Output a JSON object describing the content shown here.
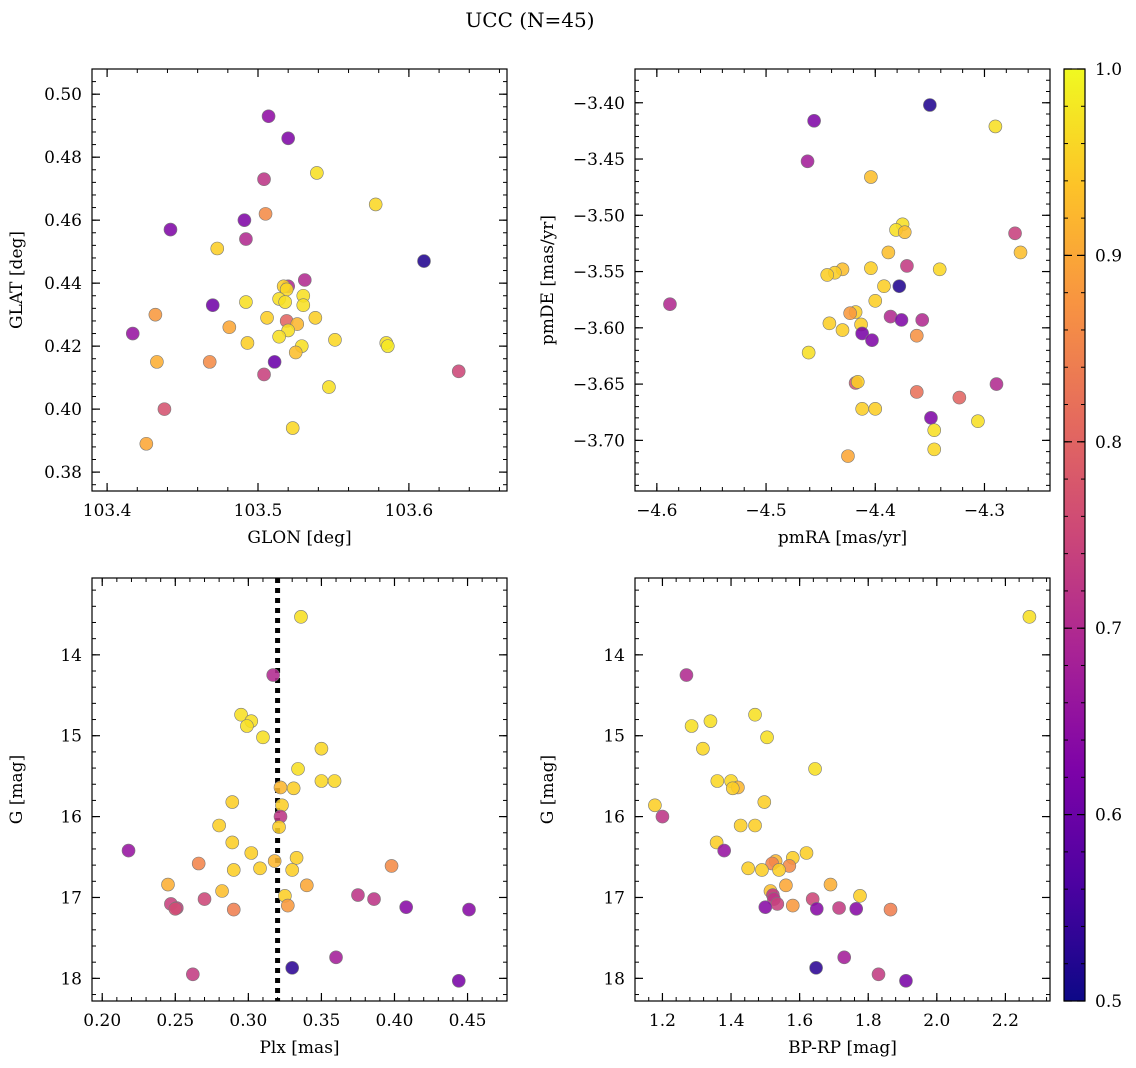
{
  "figure": {
    "title": "UCC (N=45)"
  },
  "colorbar": {
    "min": 0.5,
    "max": 1.0,
    "ticks": [
      0.5,
      0.6,
      0.7,
      0.8,
      0.9,
      1.0
    ],
    "tick_labels": [
      "0.5",
      "0.6",
      "0.7",
      "0.8",
      "0.9",
      "1.0"
    ],
    "colormap": "plasma"
  },
  "chart_data": [
    {
      "type": "scatter",
      "xlabel": "GLON [deg]",
      "ylabel": "GLAT [deg]",
      "xlim": [
        103.39,
        103.665
      ],
      "ylim": [
        0.374,
        0.508
      ],
      "xticks": [
        103.4,
        103.5,
        103.6
      ],
      "xtick_labels": [
        "103.4",
        "103.5",
        "103.6"
      ],
      "yticks": [
        0.38,
        0.4,
        0.42,
        0.44,
        0.46,
        0.48,
        0.5
      ],
      "ytick_labels": [
        "0.38",
        "0.40",
        "0.42",
        "0.44",
        "0.46",
        "0.48",
        "0.50"
      ],
      "invert_y": false,
      "points": [
        {
          "x": 103.507,
          "y": 0.493,
          "c": 0.65
        },
        {
          "x": 103.52,
          "y": 0.486,
          "c": 0.63
        },
        {
          "x": 103.539,
          "y": 0.475,
          "c": 0.97
        },
        {
          "x": 103.504,
          "y": 0.473,
          "c": 0.72
        },
        {
          "x": 103.578,
          "y": 0.465,
          "c": 0.96
        },
        {
          "x": 103.505,
          "y": 0.462,
          "c": 0.86
        },
        {
          "x": 103.491,
          "y": 0.46,
          "c": 0.63
        },
        {
          "x": 103.442,
          "y": 0.457,
          "c": 0.63
        },
        {
          "x": 103.492,
          "y": 0.454,
          "c": 0.7
        },
        {
          "x": 103.473,
          "y": 0.451,
          "c": 0.95
        },
        {
          "x": 103.61,
          "y": 0.447,
          "c": 0.52
        },
        {
          "x": 103.531,
          "y": 0.441,
          "c": 0.7
        },
        {
          "x": 103.52,
          "y": 0.439,
          "c": 0.7
        },
        {
          "x": 103.517,
          "y": 0.439,
          "c": 0.95
        },
        {
          "x": 103.519,
          "y": 0.438,
          "c": 0.96
        },
        {
          "x": 103.514,
          "y": 0.435,
          "c": 0.97
        },
        {
          "x": 103.53,
          "y": 0.436,
          "c": 0.97
        },
        {
          "x": 103.518,
          "y": 0.434,
          "c": 0.97
        },
        {
          "x": 103.492,
          "y": 0.434,
          "c": 0.97
        },
        {
          "x": 103.53,
          "y": 0.433,
          "c": 0.97
        },
        {
          "x": 103.47,
          "y": 0.433,
          "c": 0.61
        },
        {
          "x": 103.432,
          "y": 0.43,
          "c": 0.88
        },
        {
          "x": 103.506,
          "y": 0.429,
          "c": 0.95
        },
        {
          "x": 103.538,
          "y": 0.429,
          "c": 0.95
        },
        {
          "x": 103.519,
          "y": 0.428,
          "c": 0.8
        },
        {
          "x": 103.526,
          "y": 0.427,
          "c": 0.92
        },
        {
          "x": 103.481,
          "y": 0.426,
          "c": 0.9
        },
        {
          "x": 103.52,
          "y": 0.425,
          "c": 0.97
        },
        {
          "x": 103.417,
          "y": 0.424,
          "c": 0.66
        },
        {
          "x": 103.514,
          "y": 0.423,
          "c": 0.97
        },
        {
          "x": 103.551,
          "y": 0.422,
          "c": 0.96
        },
        {
          "x": 103.585,
          "y": 0.421,
          "c": 0.97
        },
        {
          "x": 103.493,
          "y": 0.421,
          "c": 0.95
        },
        {
          "x": 103.529,
          "y": 0.42,
          "c": 0.97
        },
        {
          "x": 103.586,
          "y": 0.42,
          "c": 0.98
        },
        {
          "x": 103.525,
          "y": 0.418,
          "c": 0.93
        },
        {
          "x": 103.468,
          "y": 0.415,
          "c": 0.86
        },
        {
          "x": 103.511,
          "y": 0.415,
          "c": 0.6
        },
        {
          "x": 103.433,
          "y": 0.415,
          "c": 0.91
        },
        {
          "x": 103.633,
          "y": 0.412,
          "c": 0.75
        },
        {
          "x": 103.504,
          "y": 0.411,
          "c": 0.74
        },
        {
          "x": 103.547,
          "y": 0.407,
          "c": 0.97
        },
        {
          "x": 103.438,
          "y": 0.4,
          "c": 0.77
        },
        {
          "x": 103.523,
          "y": 0.394,
          "c": 0.96
        },
        {
          "x": 103.426,
          "y": 0.389,
          "c": 0.9
        }
      ]
    },
    {
      "type": "scatter",
      "xlabel": "pmRA [mas/yr]",
      "ylabel": "pmDE [mas/yr]",
      "xlim": [
        -4.62,
        -4.24
      ],
      "ylim": [
        -3.745,
        -3.37
      ],
      "xticks": [
        -4.6,
        -4.5,
        -4.4,
        -4.3
      ],
      "xtick_labels": [
        "−4.6",
        "−4.5",
        "−4.4",
        "−4.3"
      ],
      "yticks": [
        -3.7,
        -3.65,
        -3.6,
        -3.55,
        -3.5,
        -3.45,
        -3.4
      ],
      "ytick_labels": [
        "−3.70",
        "−3.65",
        "−3.60",
        "−3.55",
        "−3.50",
        "−3.45",
        "−3.40"
      ],
      "invert_y": false,
      "points": [
        {
          "x": -4.35,
          "y": -3.402,
          "c": 0.52
        },
        {
          "x": -4.456,
          "y": -3.416,
          "c": 0.63
        },
        {
          "x": -4.29,
          "y": -3.421,
          "c": 0.97
        },
        {
          "x": -4.462,
          "y": -3.452,
          "c": 0.68
        },
        {
          "x": -4.404,
          "y": -3.466,
          "c": 0.93
        },
        {
          "x": -4.375,
          "y": -3.508,
          "c": 0.97
        },
        {
          "x": -4.381,
          "y": -3.513,
          "c": 0.97
        },
        {
          "x": -4.373,
          "y": -3.515,
          "c": 0.93
        },
        {
          "x": -4.272,
          "y": -3.516,
          "c": 0.74
        },
        {
          "x": -4.388,
          "y": -3.533,
          "c": 0.93
        },
        {
          "x": -4.267,
          "y": -3.533,
          "c": 0.93
        },
        {
          "x": -4.371,
          "y": -3.545,
          "c": 0.73
        },
        {
          "x": -4.404,
          "y": -3.547,
          "c": 0.95
        },
        {
          "x": -4.43,
          "y": -3.548,
          "c": 0.93
        },
        {
          "x": -4.341,
          "y": -3.548,
          "c": 0.96
        },
        {
          "x": -4.437,
          "y": -3.551,
          "c": 0.95
        },
        {
          "x": -4.444,
          "y": -3.553,
          "c": 0.95
        },
        {
          "x": -4.378,
          "y": -3.563,
          "c": 0.52
        },
        {
          "x": -4.392,
          "y": -3.563,
          "c": 0.95
        },
        {
          "x": -4.4,
          "y": -3.576,
          "c": 0.95
        },
        {
          "x": -4.588,
          "y": -3.579,
          "c": 0.7
        },
        {
          "x": -4.418,
          "y": -3.586,
          "c": 0.95
        },
        {
          "x": -4.423,
          "y": -3.587,
          "c": 0.88
        },
        {
          "x": -4.386,
          "y": -3.59,
          "c": 0.7
        },
        {
          "x": -4.376,
          "y": -3.593,
          "c": 0.63
        },
        {
          "x": -4.357,
          "y": -3.593,
          "c": 0.7
        },
        {
          "x": -4.442,
          "y": -3.596,
          "c": 0.95
        },
        {
          "x": -4.413,
          "y": -3.597,
          "c": 0.95
        },
        {
          "x": -4.43,
          "y": -3.602,
          "c": 0.95
        },
        {
          "x": -4.412,
          "y": -3.605,
          "c": 0.62
        },
        {
          "x": -4.362,
          "y": -3.607,
          "c": 0.87
        },
        {
          "x": -4.403,
          "y": -3.611,
          "c": 0.63
        },
        {
          "x": -4.461,
          "y": -3.622,
          "c": 0.97
        },
        {
          "x": -4.418,
          "y": -3.649,
          "c": 0.77
        },
        {
          "x": -4.416,
          "y": -3.648,
          "c": 0.95
        },
        {
          "x": -4.289,
          "y": -3.65,
          "c": 0.7
        },
        {
          "x": -4.362,
          "y": -3.657,
          "c": 0.82
        },
        {
          "x": -4.323,
          "y": -3.662,
          "c": 0.8
        },
        {
          "x": -4.412,
          "y": -3.672,
          "c": 0.95
        },
        {
          "x": -4.4,
          "y": -3.672,
          "c": 0.95
        },
        {
          "x": -4.349,
          "y": -3.68,
          "c": 0.63
        },
        {
          "x": -4.306,
          "y": -3.683,
          "c": 0.97
        },
        {
          "x": -4.346,
          "y": -3.691,
          "c": 0.97
        },
        {
          "x": -4.346,
          "y": -3.708,
          "c": 0.96
        },
        {
          "x": -4.425,
          "y": -3.714,
          "c": 0.9
        }
      ]
    },
    {
      "type": "scatter",
      "xlabel": "Plx [mas]",
      "ylabel": "G [mag]",
      "xlim": [
        0.193,
        0.477
      ],
      "ylim": [
        18.28,
        13.05
      ],
      "xticks": [
        0.2,
        0.25,
        0.3,
        0.35,
        0.4,
        0.45
      ],
      "xtick_labels": [
        "0.20",
        "0.25",
        "0.30",
        "0.35",
        "0.40",
        "0.45"
      ],
      "yticks": [
        14,
        15,
        16,
        17,
        18
      ],
      "ytick_labels": [
        "14",
        "15",
        "16",
        "17",
        "18"
      ],
      "invert_y": true,
      "vline": {
        "x": 0.32,
        "style": "dotted"
      },
      "points": [
        {
          "x": 0.336,
          "y": 13.53,
          "c": 0.97
        },
        {
          "x": 0.317,
          "y": 14.25,
          "c": 0.7
        },
        {
          "x": 0.295,
          "y": 14.74,
          "c": 0.97
        },
        {
          "x": 0.302,
          "y": 14.82,
          "c": 0.97
        },
        {
          "x": 0.299,
          "y": 14.88,
          "c": 0.97
        },
        {
          "x": 0.31,
          "y": 15.02,
          "c": 0.97
        },
        {
          "x": 0.35,
          "y": 15.16,
          "c": 0.96
        },
        {
          "x": 0.334,
          "y": 15.41,
          "c": 0.97
        },
        {
          "x": 0.35,
          "y": 15.56,
          "c": 0.96
        },
        {
          "x": 0.359,
          "y": 15.56,
          "c": 0.96
        },
        {
          "x": 0.322,
          "y": 15.64,
          "c": 0.92
        },
        {
          "x": 0.331,
          "y": 15.65,
          "c": 0.95
        },
        {
          "x": 0.289,
          "y": 15.82,
          "c": 0.95
        },
        {
          "x": 0.323,
          "y": 15.86,
          "c": 0.95
        },
        {
          "x": 0.322,
          "y": 16.0,
          "c": 0.72
        },
        {
          "x": 0.28,
          "y": 16.11,
          "c": 0.95
        },
        {
          "x": 0.321,
          "y": 16.13,
          "c": 0.95
        },
        {
          "x": 0.289,
          "y": 16.32,
          "c": 0.95
        },
        {
          "x": 0.218,
          "y": 16.42,
          "c": 0.66
        },
        {
          "x": 0.302,
          "y": 16.45,
          "c": 0.95
        },
        {
          "x": 0.333,
          "y": 16.51,
          "c": 0.95
        },
        {
          "x": 0.318,
          "y": 16.55,
          "c": 0.92
        },
        {
          "x": 0.266,
          "y": 16.58,
          "c": 0.85
        },
        {
          "x": 0.398,
          "y": 16.61,
          "c": 0.86
        },
        {
          "x": 0.308,
          "y": 16.64,
          "c": 0.95
        },
        {
          "x": 0.29,
          "y": 16.66,
          "c": 0.95
        },
        {
          "x": 0.33,
          "y": 16.66,
          "c": 0.95
        },
        {
          "x": 0.245,
          "y": 16.84,
          "c": 0.91
        },
        {
          "x": 0.34,
          "y": 16.85,
          "c": 0.9
        },
        {
          "x": 0.282,
          "y": 16.92,
          "c": 0.93
        },
        {
          "x": 0.375,
          "y": 16.97,
          "c": 0.72
        },
        {
          "x": 0.325,
          "y": 16.98,
          "c": 0.95
        },
        {
          "x": 0.27,
          "y": 17.02,
          "c": 0.75
        },
        {
          "x": 0.386,
          "y": 17.02,
          "c": 0.72
        },
        {
          "x": 0.247,
          "y": 17.08,
          "c": 0.74
        },
        {
          "x": 0.327,
          "y": 17.1,
          "c": 0.88
        },
        {
          "x": 0.408,
          "y": 17.12,
          "c": 0.64
        },
        {
          "x": 0.251,
          "y": 17.13,
          "c": 0.73
        },
        {
          "x": 0.25,
          "y": 17.14,
          "c": 0.76
        },
        {
          "x": 0.29,
          "y": 17.15,
          "c": 0.84
        },
        {
          "x": 0.451,
          "y": 17.15,
          "c": 0.64
        },
        {
          "x": 0.36,
          "y": 17.74,
          "c": 0.68
        },
        {
          "x": 0.33,
          "y": 17.87,
          "c": 0.53
        },
        {
          "x": 0.262,
          "y": 17.95,
          "c": 0.73
        },
        {
          "x": 0.444,
          "y": 18.03,
          "c": 0.62
        }
      ]
    },
    {
      "type": "scatter",
      "xlabel": "BP-RP [mag]",
      "ylabel": "G [mag]",
      "xlim": [
        1.12,
        2.33
      ],
      "ylim": [
        18.28,
        13.05
      ],
      "xticks": [
        1.2,
        1.4,
        1.6,
        1.8,
        2.0,
        2.2
      ],
      "xtick_labels": [
        "1.2",
        "1.4",
        "1.6",
        "1.8",
        "2.0",
        "2.2"
      ],
      "yticks": [
        14,
        15,
        16,
        17,
        18
      ],
      "ytick_labels": [
        "14",
        "15",
        "16",
        "17",
        "18"
      ],
      "invert_y": true,
      "points": [
        {
          "x": 2.27,
          "y": 13.53,
          "c": 0.97
        },
        {
          "x": 1.27,
          "y": 14.25,
          "c": 0.7
        },
        {
          "x": 1.47,
          "y": 14.74,
          "c": 0.97
        },
        {
          "x": 1.34,
          "y": 14.82,
          "c": 0.97
        },
        {
          "x": 1.285,
          "y": 14.88,
          "c": 0.97
        },
        {
          "x": 1.505,
          "y": 15.02,
          "c": 0.97
        },
        {
          "x": 1.318,
          "y": 15.16,
          "c": 0.96
        },
        {
          "x": 1.645,
          "y": 15.41,
          "c": 0.97
        },
        {
          "x": 1.36,
          "y": 15.56,
          "c": 0.96
        },
        {
          "x": 1.4,
          "y": 15.56,
          "c": 0.96
        },
        {
          "x": 1.42,
          "y": 15.64,
          "c": 0.92
        },
        {
          "x": 1.405,
          "y": 15.65,
          "c": 0.95
        },
        {
          "x": 1.497,
          "y": 15.82,
          "c": 0.95
        },
        {
          "x": 1.178,
          "y": 15.86,
          "c": 0.95
        },
        {
          "x": 1.2,
          "y": 16.0,
          "c": 0.72
        },
        {
          "x": 1.428,
          "y": 16.11,
          "c": 0.95
        },
        {
          "x": 1.47,
          "y": 16.11,
          "c": 0.95
        },
        {
          "x": 1.358,
          "y": 16.32,
          "c": 0.95
        },
        {
          "x": 1.38,
          "y": 16.42,
          "c": 0.66
        },
        {
          "x": 1.62,
          "y": 16.45,
          "c": 0.95
        },
        {
          "x": 1.58,
          "y": 16.51,
          "c": 0.95
        },
        {
          "x": 1.53,
          "y": 16.55,
          "c": 0.92
        },
        {
          "x": 1.52,
          "y": 16.58,
          "c": 0.85
        },
        {
          "x": 1.57,
          "y": 16.61,
          "c": 0.86
        },
        {
          "x": 1.45,
          "y": 16.64,
          "c": 0.95
        },
        {
          "x": 1.49,
          "y": 16.66,
          "c": 0.95
        },
        {
          "x": 1.54,
          "y": 16.66,
          "c": 0.95
        },
        {
          "x": 1.69,
          "y": 16.84,
          "c": 0.91
        },
        {
          "x": 1.56,
          "y": 16.85,
          "c": 0.9
        },
        {
          "x": 1.515,
          "y": 16.92,
          "c": 0.93
        },
        {
          "x": 1.776,
          "y": 16.98,
          "c": 0.95
        },
        {
          "x": 1.522,
          "y": 16.97,
          "c": 0.72
        },
        {
          "x": 1.638,
          "y": 17.02,
          "c": 0.75
        },
        {
          "x": 1.525,
          "y": 17.02,
          "c": 0.72
        },
        {
          "x": 1.535,
          "y": 17.08,
          "c": 0.74
        },
        {
          "x": 1.58,
          "y": 17.1,
          "c": 0.88
        },
        {
          "x": 1.5,
          "y": 17.12,
          "c": 0.64
        },
        {
          "x": 1.715,
          "y": 17.13,
          "c": 0.73
        },
        {
          "x": 1.65,
          "y": 17.14,
          "c": 0.64
        },
        {
          "x": 1.765,
          "y": 17.14,
          "c": 0.64
        },
        {
          "x": 1.865,
          "y": 17.15,
          "c": 0.84
        },
        {
          "x": 1.73,
          "y": 17.74,
          "c": 0.68
        },
        {
          "x": 1.648,
          "y": 17.87,
          "c": 0.53
        },
        {
          "x": 1.83,
          "y": 17.95,
          "c": 0.73
        },
        {
          "x": 1.91,
          "y": 18.03,
          "c": 0.62
        }
      ]
    }
  ]
}
